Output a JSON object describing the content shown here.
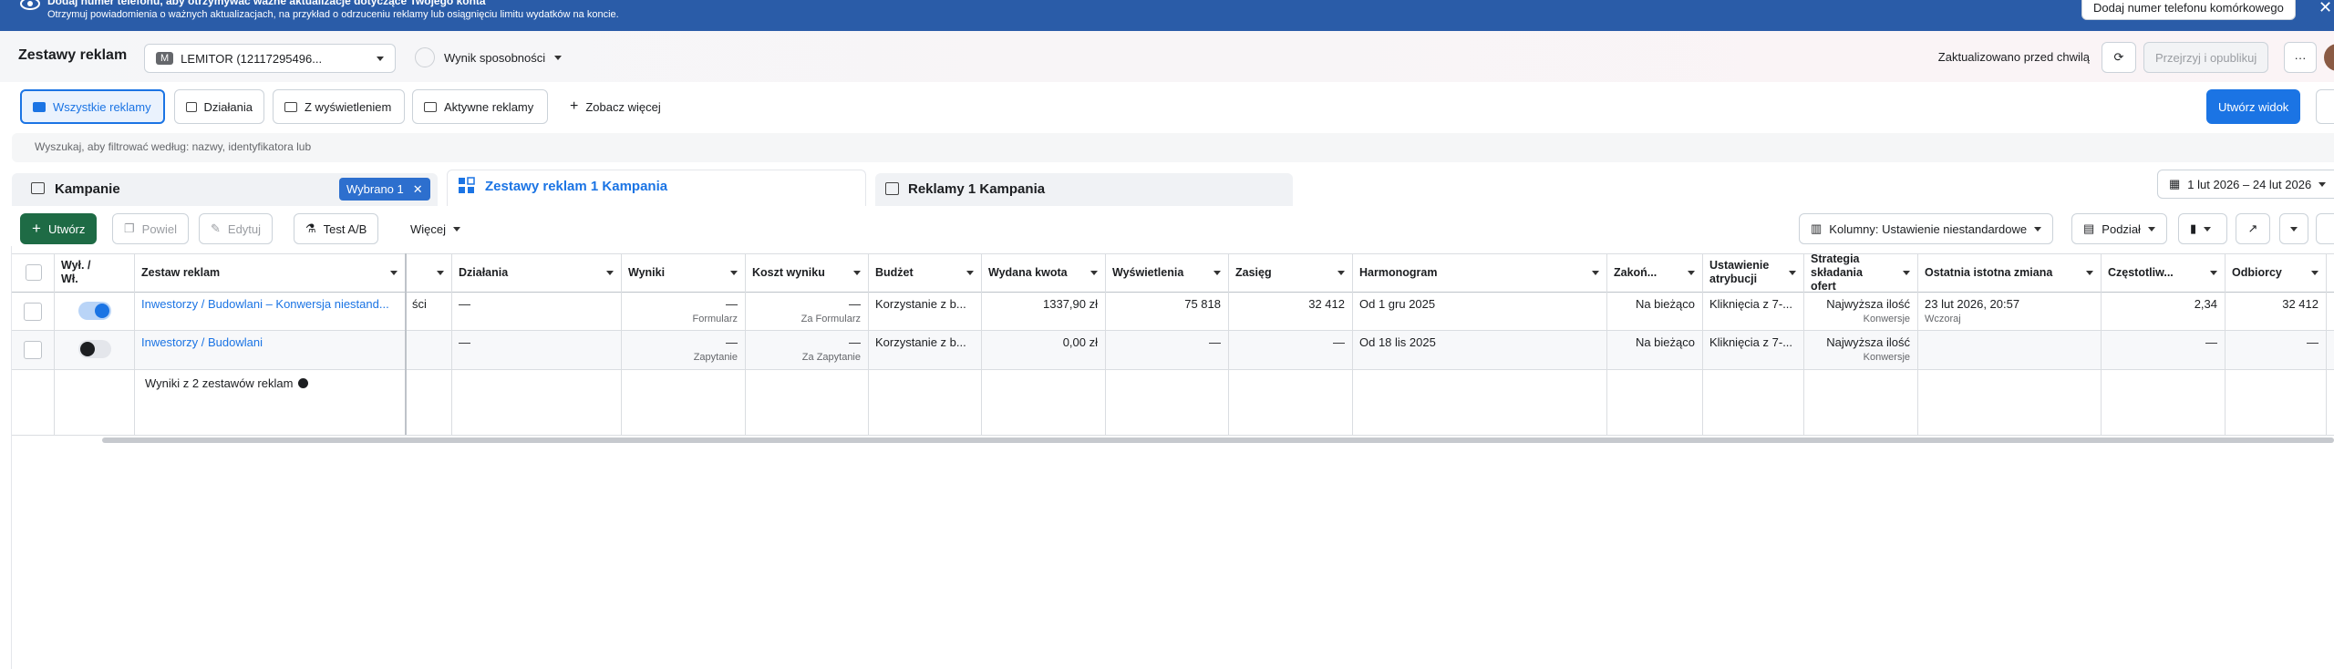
{
  "banner": {
    "title": "Dodaj numer telefonu, aby otrzymywać ważne aktualizacje dotyczące Twojego konta",
    "text": "Otrzymuj powiadomienia o ważnych aktualizacjach, na przykład o odrzuceniu reklamy lub osiągnięciu limitu wydatków na koncie.",
    "button": "Dodaj numer telefonu komórkowego"
  },
  "header": {
    "title": "Zestawy reklam",
    "account_badge": "M",
    "account": "LEMITOR (12117295496...",
    "opportunity": "Wynik sposobności",
    "updated": "Zaktualizowano przed chwilą",
    "publish": "Przejrzyj i opublikuj"
  },
  "views": {
    "tabs": [
      "Wszystkie reklamy",
      "Działania",
      "Z wyświetleniem",
      "Aktywne reklamy"
    ],
    "more": "Zobacz więcej",
    "create": "Utwórz widok"
  },
  "search": {
    "placeholder": "Wyszukaj, aby filtrować według: nazwy, identyfikatora lub"
  },
  "levels": {
    "campaigns": "Kampanie",
    "selected": "Wybrano 1",
    "adsets": "Zestawy reklam 1 Kampania",
    "ads": "Reklamy 1 Kampania",
    "date_range": "1 lut 2026 – 24 lut 2026"
  },
  "toolbar": {
    "create": "Utwórz",
    "duplicate": "Powiel",
    "edit": "Edytuj",
    "ab_test": "Test A/B",
    "more": "Więcej",
    "columns": "Kolumny: Ustawienie niestandardowe",
    "breakdown": "Podział"
  },
  "table": {
    "headers": [
      "Wył. / Wł.",
      "Zestaw reklam",
      null,
      "Działania",
      "Wyniki",
      "Koszt wyniku",
      "Budżet",
      "Wydana kwota",
      "Wyświetlenia",
      "Zasięg",
      "Harmonogram",
      "Zakoń...",
      "Ustawienie atrybucji",
      "Strategia składania ofert",
      "Ostatnia istotna zmiana",
      "Częstotliw...",
      "Odbiorcy"
    ],
    "rows": [
      {
        "on": true,
        "cells": [
          "Inwestorzy / Budowlani – Konwersja niestand...",
          "ści",
          "—",
          {
            "text": "—",
            "sub": "Formularz"
          },
          {
            "text": "—",
            "sub": "Za Formularz"
          },
          "Korzystanie z b...",
          "1337,90 zł",
          "75 818",
          "32 412",
          "Od 1 gru 2025",
          "Na bieżąco",
          "Kliknięcia z 7-...",
          {
            "text": "Najwyższa ilość",
            "sub": "Konwersje"
          },
          {
            "text": "23 lut 2026, 20:57",
            "sub": "Wczoraj"
          },
          "2,34",
          "32 412"
        ]
      },
      {
        "on": false,
        "cells": [
          "Inwestorzy / Budowlani",
          null,
          "—",
          {
            "text": "—",
            "sub": "Zapytanie"
          },
          {
            "text": "—",
            "sub": "Za Zapytanie"
          },
          "Korzystanie z b...",
          "0,00 zł",
          "—",
          "—",
          "Od 18 lis 2025",
          "Na bieżąco",
          "Kliknięcia z 7-...",
          {
            "text": "Najwyższa ilość",
            "sub": "Konwersje"
          },
          null,
          "—",
          "—"
        ]
      }
    ],
    "summary": "Wyniki z 2 zestawów reklam"
  }
}
